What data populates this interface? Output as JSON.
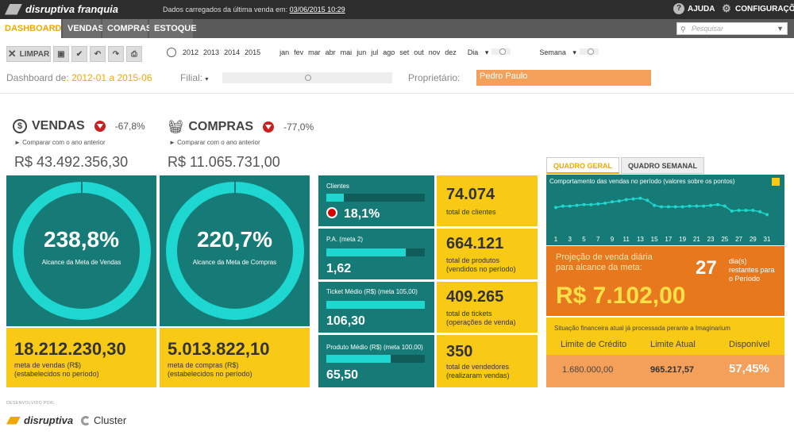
{
  "header": {
    "brand": "disruptiva franquia",
    "loaded_label": "Dados carregados da última venda em:",
    "loaded_date": "03/06/2015 10:29",
    "help": "AJUDA",
    "settings": "CONFIGURAÇÕES"
  },
  "nav": {
    "tabs": [
      "DASHBOARD",
      "VENDAS",
      "COMPRAS",
      "ESTOQUE"
    ],
    "search_placeholder": "Pesquisar"
  },
  "toolbar": {
    "clear": "LIMPAR"
  },
  "timeline": {
    "years": [
      "2012",
      "2013",
      "2014",
      "2015"
    ],
    "months": [
      "jan",
      "fev",
      "mar",
      "abr",
      "mai",
      "jun",
      "jul",
      "ago",
      "set",
      "out",
      "nov",
      "dez"
    ],
    "day_label": "Dia",
    "week_label": "Semana"
  },
  "filters": {
    "dashboard_label": "Dashboard de:",
    "dashboard_range": "2012-01 a 2015-06",
    "filial_label": "Filial:",
    "owner_label": "Proprietário:",
    "owner_value": "Pedro Paulo"
  },
  "sales": {
    "title": "VENDAS",
    "change": "-67,8%",
    "compare": "► Comparar com o ano anterior",
    "total": "R$ 43.492.356,30",
    "goal_pct": "238,8%",
    "goal_label": "Alcance da Meta de Vendas",
    "goal_value": "18.212.230,30",
    "goal_desc_1": "meta de vendas (R$)",
    "goal_desc_2": "(estabelecidos no período)"
  },
  "purchases": {
    "title": "COMPRAS",
    "change": "-77,0%",
    "compare": "► Comparar com o ano anterior",
    "total": "R$ 11.065.731,00",
    "goal_pct": "220,7%",
    "goal_label": "Alcance da Meta de Compras",
    "goal_value": "5.013.822,10",
    "goal_desc_1": "meta de compras (R$)",
    "goal_desc_2": "(estabelecidos no período)"
  },
  "kpis": [
    {
      "title": "Clientes",
      "value": "18,1%",
      "fill": 0.18,
      "number": "74.074",
      "desc_1": "total de clientes",
      "desc_2": ""
    },
    {
      "title": "P.A. (meta 2)",
      "value": "1,62",
      "fill": 0.81,
      "number": "664.121",
      "desc_1": "total de produtos",
      "desc_2": "(vendidos no período)"
    },
    {
      "title": "Ticket Médio (R$) (meta 105,00)",
      "value": "106,30",
      "fill": 1.0,
      "number": "409.265",
      "desc_1": "total de tickets",
      "desc_2": "(operações de venda)"
    },
    {
      "title": "Produto Médio (R$) (meta 100,00)",
      "value": "65,50",
      "fill": 0.655,
      "number": "350",
      "desc_1": "total de vendedores",
      "desc_2": "(realizaram vendas)"
    }
  ],
  "panel": {
    "tab_general": "QUADRO GERAL",
    "tab_weekly": "QUADRO SEMANAL",
    "chart_title": "Comportamento das vendas no período (valores sobre os pontos)",
    "projection_text_1": "Projeção de venda diária",
    "projection_text_2": "para alcance da meta:",
    "projection_value": "R$ 7.102,00",
    "days": "27",
    "days_label_1": "dia(s)",
    "days_label_2": "restantes para",
    "days_label_3": "o Período",
    "fin_title": "Situação financeira atual já processada perante a Imaginarium",
    "fin_headers": [
      "Limite de Crédito",
      "Limite Atual",
      "Disponível"
    ],
    "fin_values": [
      "1.680.000,00",
      "965.217,57",
      "57,45%"
    ]
  },
  "chart_data": {
    "type": "line",
    "title": "Comportamento das vendas no período (valores sobre os pontos)",
    "x": [
      1,
      2,
      3,
      4,
      5,
      6,
      7,
      8,
      9,
      10,
      11,
      12,
      13,
      14,
      15,
      16,
      17,
      18,
      19,
      20,
      21,
      22,
      23,
      24,
      25,
      26,
      27,
      28,
      29,
      30,
      31
    ],
    "x_tick_labels": [
      "1",
      "3",
      "5",
      "7",
      "9",
      "11",
      "13",
      "15",
      "17",
      "19",
      "21",
      "23",
      "25",
      "27",
      "29",
      "31"
    ],
    "values": [
      34,
      36,
      36,
      37,
      38,
      38,
      39,
      40,
      42,
      43,
      45,
      46,
      47,
      44,
      37,
      35,
      35,
      35,
      35,
      36,
      36,
      36,
      37,
      38,
      36,
      29,
      30,
      30,
      30,
      28,
      24
    ],
    "ylim": [
      0,
      60
    ]
  },
  "footer": {
    "developed_by": "DESENVOLVIDO POR:",
    "logo_1": "disruptiva",
    "logo_2": "Cluster"
  }
}
